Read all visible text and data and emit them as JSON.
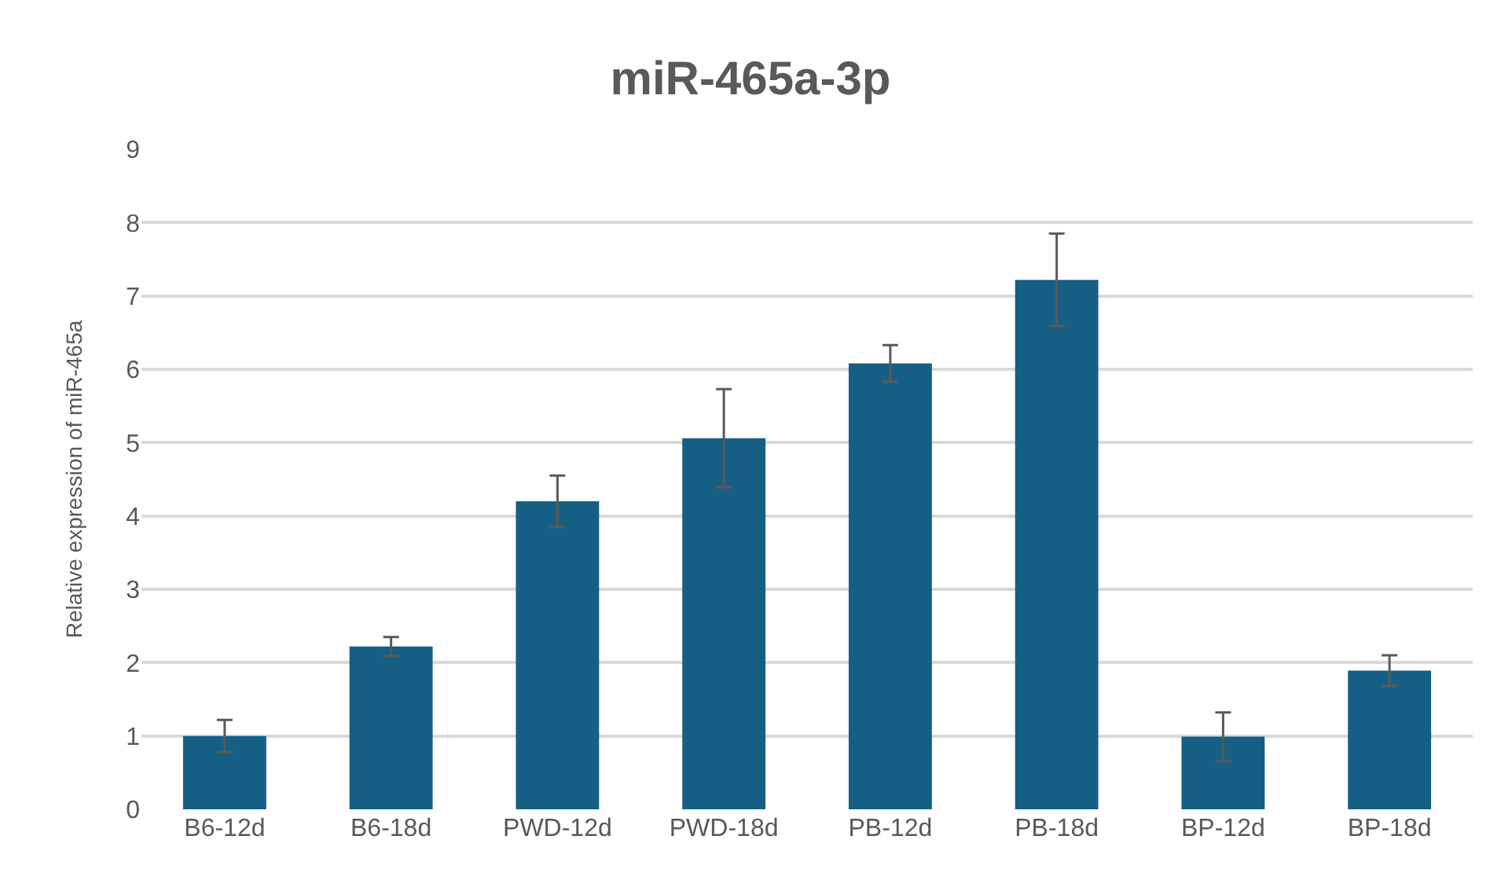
{
  "chart_data": {
    "type": "bar",
    "title": "miR-465a-3p",
    "ylabel": "Relative expression of miR-465a",
    "categories": [
      "B6-12d",
      "B6-18d",
      "PWD-12d",
      "PWD-18d",
      "PB-12d",
      "PB-18d",
      "BP-12d",
      "BP-18d"
    ],
    "values": [
      1.0,
      2.22,
      4.2,
      5.06,
      6.08,
      7.22,
      0.99,
      1.89
    ],
    "errors": [
      0.22,
      0.13,
      0.35,
      0.67,
      0.25,
      0.63,
      0.33,
      0.21
    ],
    "color": "#165f84",
    "ylim": [
      0,
      9
    ],
    "yticks": [
      0,
      1,
      2,
      3,
      4,
      5,
      6,
      7,
      8,
      9
    ],
    "grid": "y",
    "legend": false
  }
}
